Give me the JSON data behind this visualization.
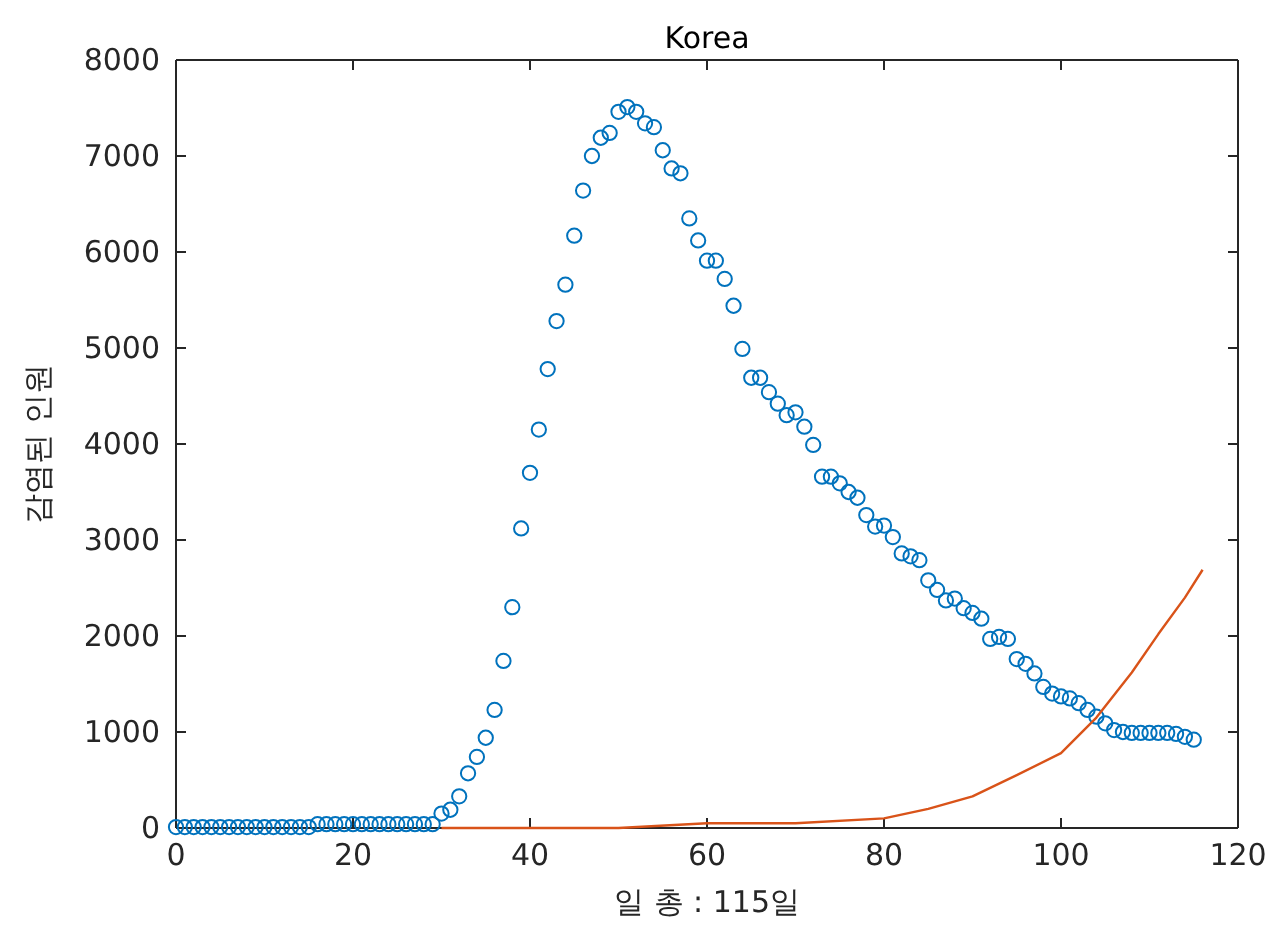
{
  "chart_data": {
    "type": "scatter",
    "title": "Korea",
    "xlabel": "일 총 : 115일",
    "ylabel": "감염된 인원",
    "xlim": [
      0,
      120
    ],
    "xticks": [
      0,
      20,
      40,
      60,
      80,
      100,
      120
    ],
    "ylim": [
      0,
      8000
    ],
    "yticks": [
      0,
      1000,
      2000,
      3000,
      4000,
      5000,
      6000,
      7000,
      8000
    ],
    "grid": false,
    "series": [
      {
        "marker": "circle",
        "color": "#0072bd",
        "x": [
          0,
          1,
          2,
          3,
          4,
          5,
          6,
          7,
          8,
          9,
          10,
          11,
          12,
          13,
          14,
          15,
          16,
          17,
          18,
          19,
          20,
          21,
          22,
          23,
          24,
          25,
          26,
          27,
          28,
          29,
          30,
          31,
          32,
          33,
          34,
          35,
          36,
          37,
          38,
          39,
          40,
          41,
          42,
          43,
          44,
          45,
          46,
          47,
          48,
          49,
          50,
          51,
          52,
          53,
          54,
          55,
          56,
          57,
          58,
          59,
          60,
          61,
          62,
          63,
          64,
          65,
          66,
          67,
          68,
          69,
          70,
          71,
          72,
          73,
          74,
          75,
          76,
          77,
          78,
          79,
          80,
          81,
          82,
          83,
          84,
          85,
          86,
          87,
          88,
          89,
          90,
          91,
          92,
          93,
          94,
          95,
          96,
          97,
          98,
          99,
          100,
          101,
          102,
          103,
          104,
          105,
          106,
          107,
          108,
          109,
          110,
          111,
          112,
          113,
          114,
          115
        ],
        "values": [
          10,
          10,
          10,
          10,
          10,
          10,
          10,
          10,
          10,
          10,
          10,
          10,
          10,
          10,
          10,
          10,
          40,
          40,
          40,
          40,
          40,
          40,
          40,
          40,
          40,
          40,
          40,
          40,
          40,
          40,
          150,
          190,
          330,
          570,
          740,
          940,
          1230,
          1740,
          2300,
          3120,
          3700,
          4150,
          4780,
          5280,
          5660,
          6170,
          6640,
          7000,
          7190,
          7240,
          7460,
          7510,
          7460,
          7340,
          7300,
          7060,
          6870,
          6820,
          6350,
          6120,
          5910,
          5910,
          5720,
          5440,
          4990,
          4690,
          4690,
          4540,
          4420,
          4300,
          4330,
          4180,
          3990,
          3660,
          3660,
          3590,
          3500,
          3440,
          3260,
          3140,
          3150,
          3030,
          2860,
          2830,
          2790,
          2580,
          2480,
          2370,
          2390,
          2290,
          2240,
          2180,
          1970,
          1990,
          1970,
          1760,
          1710,
          1610,
          1470,
          1400,
          1370,
          1350,
          1300,
          1230,
          1160,
          1090,
          1020,
          1000,
          990,
          990,
          990,
          990,
          990,
          980,
          950,
          920
        ]
      },
      {
        "type": "line",
        "line_style": "solid",
        "marker": "none",
        "color": "#d95319",
        "x": [
          30,
          40,
          50,
          60,
          70,
          80,
          85,
          90,
          95,
          100,
          104,
          108,
          111,
          114,
          116
        ],
        "values": [
          0,
          0,
          0,
          50,
          50,
          100,
          200,
          330,
          550,
          780,
          1150,
          1620,
          2020,
          2400,
          2690
        ]
      }
    ]
  }
}
